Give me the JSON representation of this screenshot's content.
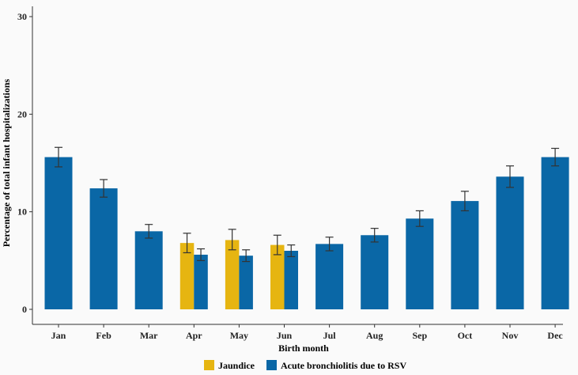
{
  "chart_data": {
    "type": "bar",
    "xlabel": "Birth month",
    "ylabel": "Percentage of total infant hospitalizations",
    "ylim": [
      0,
      30
    ],
    "yticks": [
      0,
      10,
      20,
      30
    ],
    "grid": false,
    "legend_position": "bottom",
    "categories": [
      "Jan",
      "Feb",
      "Mar",
      "Apr",
      "May",
      "Jun",
      "Jul",
      "Aug",
      "Sep",
      "Oct",
      "Nov",
      "Dec"
    ],
    "series": [
      {
        "name": "Jaundice",
        "color": "#e6b511",
        "values": [
          null,
          null,
          null,
          6.8,
          7.1,
          6.6,
          null,
          null,
          null,
          null,
          null,
          null
        ],
        "err_low": [
          null,
          null,
          null,
          5.8,
          6.1,
          5.6,
          null,
          null,
          null,
          null,
          null,
          null
        ],
        "err_high": [
          null,
          null,
          null,
          7.8,
          8.2,
          7.6,
          null,
          null,
          null,
          null,
          null,
          null
        ]
      },
      {
        "name": "Acute bronchiolitis due to RSV",
        "color": "#0a67a6",
        "values": [
          15.6,
          12.4,
          8.0,
          5.6,
          5.5,
          6.0,
          6.7,
          7.6,
          9.3,
          11.1,
          13.6,
          15.6
        ],
        "err_low": [
          14.6,
          11.5,
          7.3,
          5.0,
          4.9,
          5.4,
          6.0,
          6.9,
          8.5,
          10.1,
          12.5,
          14.7
        ],
        "err_high": [
          16.6,
          13.3,
          8.7,
          6.2,
          6.1,
          6.6,
          7.4,
          8.3,
          10.1,
          12.1,
          14.7,
          16.5
        ]
      }
    ]
  }
}
